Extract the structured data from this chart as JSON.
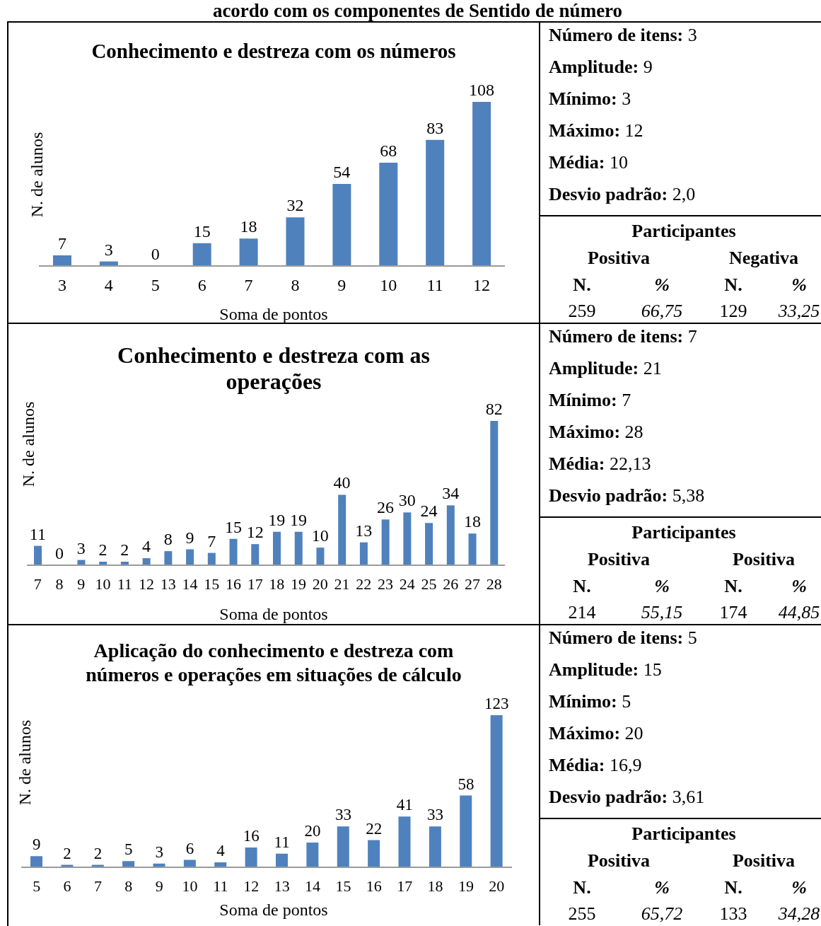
{
  "chart_data": [
    {
      "type": "other",
      "title": "acordo com os componentes de Sentido de número"
    },
    {
      "type": "bar",
      "title": "Conhecimento e destreza com os números",
      "xlabel": "Soma de pontos",
      "ylabel": "N. de alunos",
      "categories": [
        "3",
        "4",
        "5",
        "6",
        "7",
        "8",
        "9",
        "10",
        "11",
        "12"
      ],
      "values": [
        7,
        3,
        0,
        15,
        18,
        32,
        54,
        68,
        83,
        108
      ],
      "color": "#4f81bd",
      "data_labels": true
    },
    {
      "type": "other",
      "annotations": [
        "Número de itens:",
        "3",
        "Amplitude:",
        "9",
        "Mínimo:",
        "3",
        "Máximo:",
        "12",
        "Média:",
        "10",
        "Desvio padrão:",
        "2,0",
        "Participantes",
        "Positiva",
        "Negativa",
        "N.",
        "%",
        "N.",
        "%",
        "259",
        "66,75",
        "129",
        "33,25"
      ]
    },
    {
      "type": "bar",
      "title": "Conhecimento e destreza com as operações",
      "xlabel": "Soma de pontos",
      "ylabel": "N. de alunos",
      "categories": [
        "7",
        "8",
        "9",
        "10",
        "11",
        "12",
        "13",
        "14",
        "15",
        "16",
        "17",
        "18",
        "19",
        "20",
        "21",
        "22",
        "23",
        "24",
        "25",
        "26",
        "27",
        "28"
      ],
      "values": [
        11,
        0,
        3,
        2,
        2,
        4,
        8,
        9,
        7,
        15,
        12,
        19,
        19,
        10,
        40,
        13,
        26,
        30,
        24,
        34,
        18,
        82
      ],
      "color": "#4f81bd",
      "data_labels": true
    },
    {
      "type": "other",
      "annotations": [
        "Número de itens:",
        "7",
        "Amplitude:",
        "21",
        "Mínimo:",
        "7",
        "Máximo:",
        "28",
        "Média:",
        "22,13",
        "Desvio padrão:",
        "5,38",
        "Participantes",
        "Positiva",
        "Positiva",
        "N.",
        "%",
        "N.",
        "%",
        "214",
        "55,15",
        "174",
        "44,85"
      ]
    },
    {
      "type": "bar",
      "title": "Aplicação do conhecimento e destreza com números e operações em situações de cálculo",
      "xlabel": "Soma de pontos",
      "ylabel": "N. de alunos",
      "categories": [
        "5",
        "6",
        "7",
        "8",
        "9",
        "10",
        "11",
        "12",
        "13",
        "14",
        "15",
        "16",
        "17",
        "18",
        "19",
        "20"
      ],
      "values": [
        9,
        2,
        2,
        5,
        3,
        6,
        4,
        16,
        11,
        20,
        33,
        22,
        41,
        33,
        58,
        123
      ],
      "color": "#4f81bd",
      "data_labels": true
    },
    {
      "type": "other",
      "annotations": [
        "Número de itens:",
        "5",
        "Amplitude:",
        "15",
        "Mínimo:",
        "5",
        "Máximo:",
        "20",
        "Média:",
        "16,9",
        "Desvio padrão:",
        "3,61",
        "Participantes",
        "Positiva",
        "Positiva",
        "N.",
        "%",
        "N.",
        "%",
        "255",
        "65,72",
        "133",
        "34,28"
      ]
    }
  ]
}
